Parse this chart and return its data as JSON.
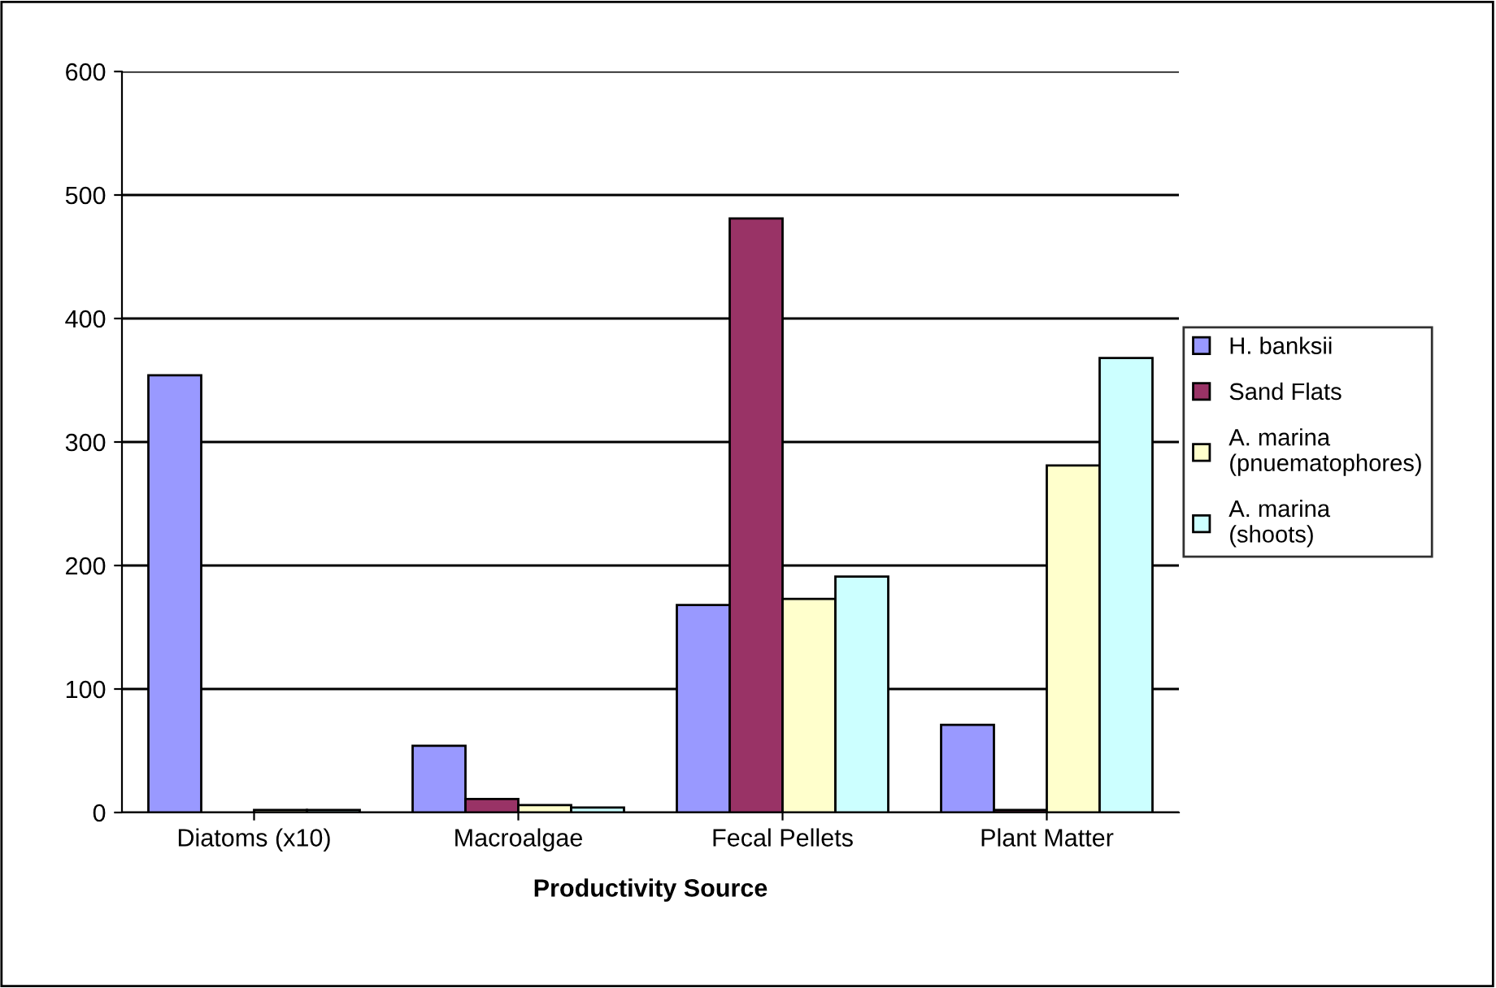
{
  "chart_data": {
    "type": "bar",
    "xlabel": "Productivity Source",
    "categories": [
      "Diatoms (x10)",
      "Macroalgae",
      "Fecal Pellets",
      "Plant Matter"
    ],
    "series": [
      {
        "name": "H. banksii",
        "color": "#9999ff",
        "values": [
          354,
          54,
          168,
          71
        ]
      },
      {
        "name": "Sand Flats",
        "color": "#993366",
        "values": [
          null,
          11,
          481,
          2
        ]
      },
      {
        "name": "A. marina (pnuematophores)",
        "color": "#ffffcc",
        "values": [
          2,
          6,
          173,
          281
        ]
      },
      {
        "name": "A. marina (shoots)",
        "color": "#ccffff",
        "values": [
          2,
          4,
          191,
          368
        ]
      }
    ],
    "ylim": [
      0,
      600
    ],
    "yticks": [
      0,
      100,
      200,
      300,
      400,
      500,
      600
    ],
    "grid": "y",
    "legend": "right"
  }
}
